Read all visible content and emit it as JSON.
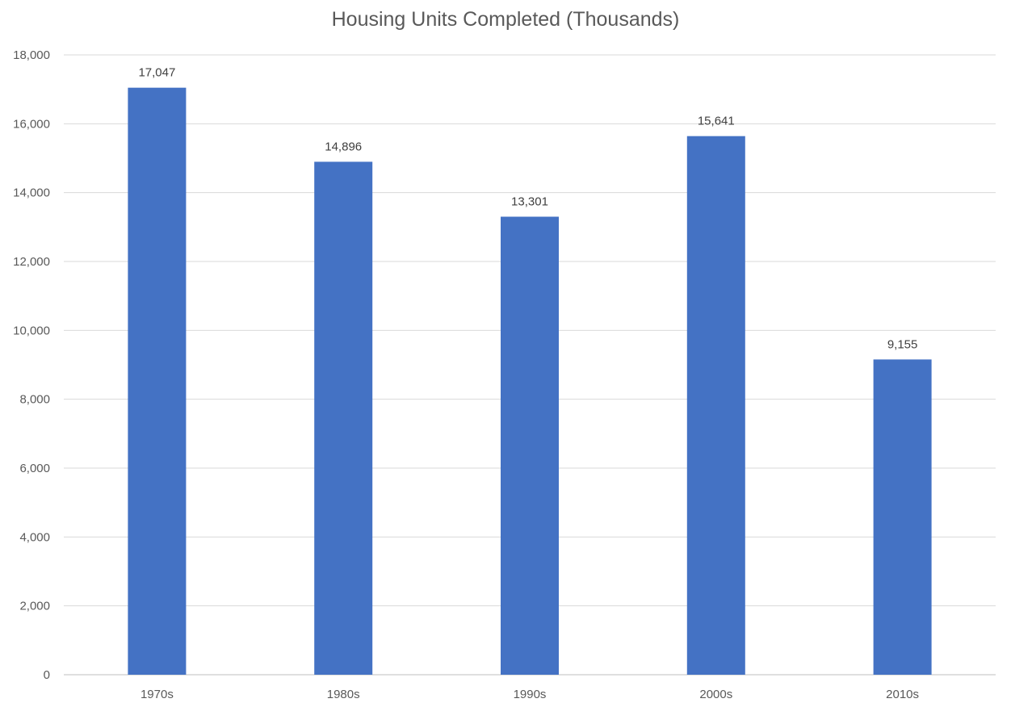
{
  "chart_data": {
    "type": "bar",
    "title": "Housing Units Completed (Thousands)",
    "xlabel": "",
    "ylabel": "",
    "categories": [
      "1970s",
      "1980s",
      "1990s",
      "2000s",
      "2010s"
    ],
    "values": [
      17047,
      14896,
      13301,
      15641,
      9155
    ],
    "data_labels": [
      "17,047",
      "14,896",
      "13,301",
      "15,641",
      "9,155"
    ],
    "ylim": [
      0,
      18000
    ],
    "yticks": [
      0,
      2000,
      4000,
      6000,
      8000,
      10000,
      12000,
      14000,
      16000,
      18000
    ],
    "ytick_labels": [
      "0",
      "2,000",
      "4,000",
      "6,000",
      "8,000",
      "10,000",
      "12,000",
      "14,000",
      "16,000",
      "18,000"
    ],
    "grid": true,
    "legend": "none",
    "bar_color": "#4472C4",
    "grid_color": "#D9D9D9"
  }
}
